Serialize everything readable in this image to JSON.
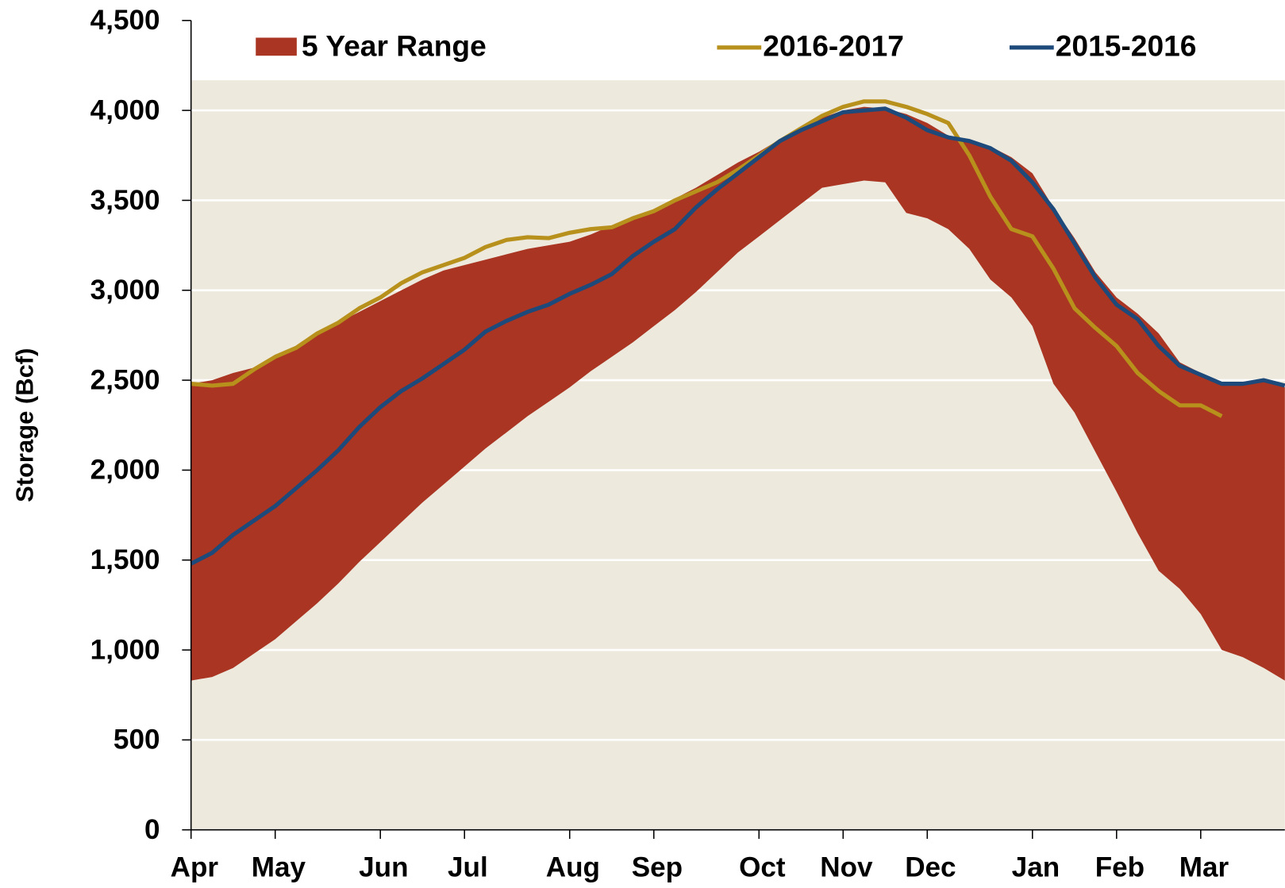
{
  "chart_data": {
    "type": "line",
    "y_label": "Storage (Bcf)",
    "categories": [
      "Apr",
      null,
      null,
      null,
      "May",
      null,
      null,
      null,
      null,
      "Jun",
      null,
      null,
      null,
      "Jul",
      null,
      null,
      null,
      null,
      "Aug",
      null,
      null,
      null,
      "Sep",
      null,
      null,
      null,
      null,
      "Oct",
      null,
      null,
      null,
      "Nov",
      null,
      null,
      null,
      "Dec",
      null,
      null,
      null,
      null,
      "Jan",
      null,
      null,
      null,
      "Feb",
      null,
      null,
      null,
      "Mar",
      null,
      null,
      null,
      null
    ],
    "series": [
      {
        "name": "5 Year Range",
        "color": "#a93522",
        "high": [
          2480,
          2500,
          2540,
          2570,
          2620,
          2680,
          2750,
          2820,
          2880,
          2940,
          3000,
          3060,
          3110,
          3140,
          3170,
          3200,
          3230,
          3250,
          3270,
          3310,
          3360,
          3400,
          3450,
          3510,
          3570,
          3640,
          3710,
          3770,
          3840,
          3900,
          3960,
          4000,
          4020,
          4010,
          3980,
          3930,
          3860,
          3840,
          3800,
          3740,
          3650,
          3460,
          3290,
          3100,
          2960,
          2870,
          2760,
          2600,
          2540,
          2490,
          2490,
          2500,
          2460
        ],
        "low": [
          830,
          850,
          900,
          980,
          1060,
          1160,
          1260,
          1370,
          1490,
          1600,
          1710,
          1820,
          1920,
          2020,
          2120,
          2210,
          2300,
          2380,
          2460,
          2550,
          2630,
          2710,
          2800,
          2890,
          2990,
          3100,
          3210,
          3300,
          3390,
          3480,
          3570,
          3590,
          3610,
          3600,
          3430,
          3400,
          3340,
          3230,
          3060,
          2960,
          2800,
          2480,
          2320,
          2100,
          1880,
          1650,
          1440,
          1340,
          1200,
          1000,
          960,
          900,
          830
        ]
      },
      {
        "name": "2016-2017",
        "color": "#b8901c",
        "values": [
          2480,
          2470,
          2480,
          2560,
          2630,
          2680,
          2760,
          2820,
          2900,
          2960,
          3040,
          3100,
          3140,
          3180,
          3240,
          3280,
          3295,
          3290,
          3320,
          3340,
          3350,
          3400,
          3440,
          3500,
          3550,
          3600,
          3670,
          3750,
          3830,
          3900,
          3970,
          4020,
          4050,
          4050,
          4020,
          3980,
          3930,
          3750,
          3520,
          3340,
          3300,
          3120,
          2900,
          2790,
          2690,
          2540,
          2440,
          2360,
          2360,
          2300,
          null,
          null,
          null
        ]
      },
      {
        "name": "2015-2016",
        "color": "#1d4a7a",
        "values": [
          1480,
          1540,
          1640,
          1720,
          1800,
          1900,
          2000,
          2110,
          2240,
          2350,
          2440,
          2510,
          2590,
          2670,
          2770,
          2830,
          2880,
          2920,
          2980,
          3030,
          3090,
          3190,
          3270,
          3340,
          3460,
          3560,
          3650,
          3740,
          3830,
          3890,
          3940,
          3990,
          4000,
          4010,
          3960,
          3890,
          3850,
          3830,
          3790,
          3720,
          3600,
          3450,
          3260,
          3070,
          2920,
          2840,
          2690,
          2580,
          2530,
          2480,
          2480,
          2500,
          2470
        ]
      }
    ],
    "ylim": [
      0,
      4500
    ],
    "yticks": [
      0,
      500,
      {
        "value": 1000,
        "label": "1,000"
      },
      {
        "value": 1500,
        "label": "1,500"
      },
      {
        "value": 2000,
        "label": "2,000"
      },
      {
        "value": 2500,
        "label": "2,500"
      },
      {
        "value": 3000,
        "label": "3,000"
      },
      {
        "value": 3500,
        "label": "3,500"
      },
      {
        "value": 4000,
        "label": "4,000"
      },
      {
        "value": 4500,
        "label": "4,500"
      }
    ],
    "grid": true,
    "plot_background": "#ede9dd",
    "legend": "top"
  }
}
